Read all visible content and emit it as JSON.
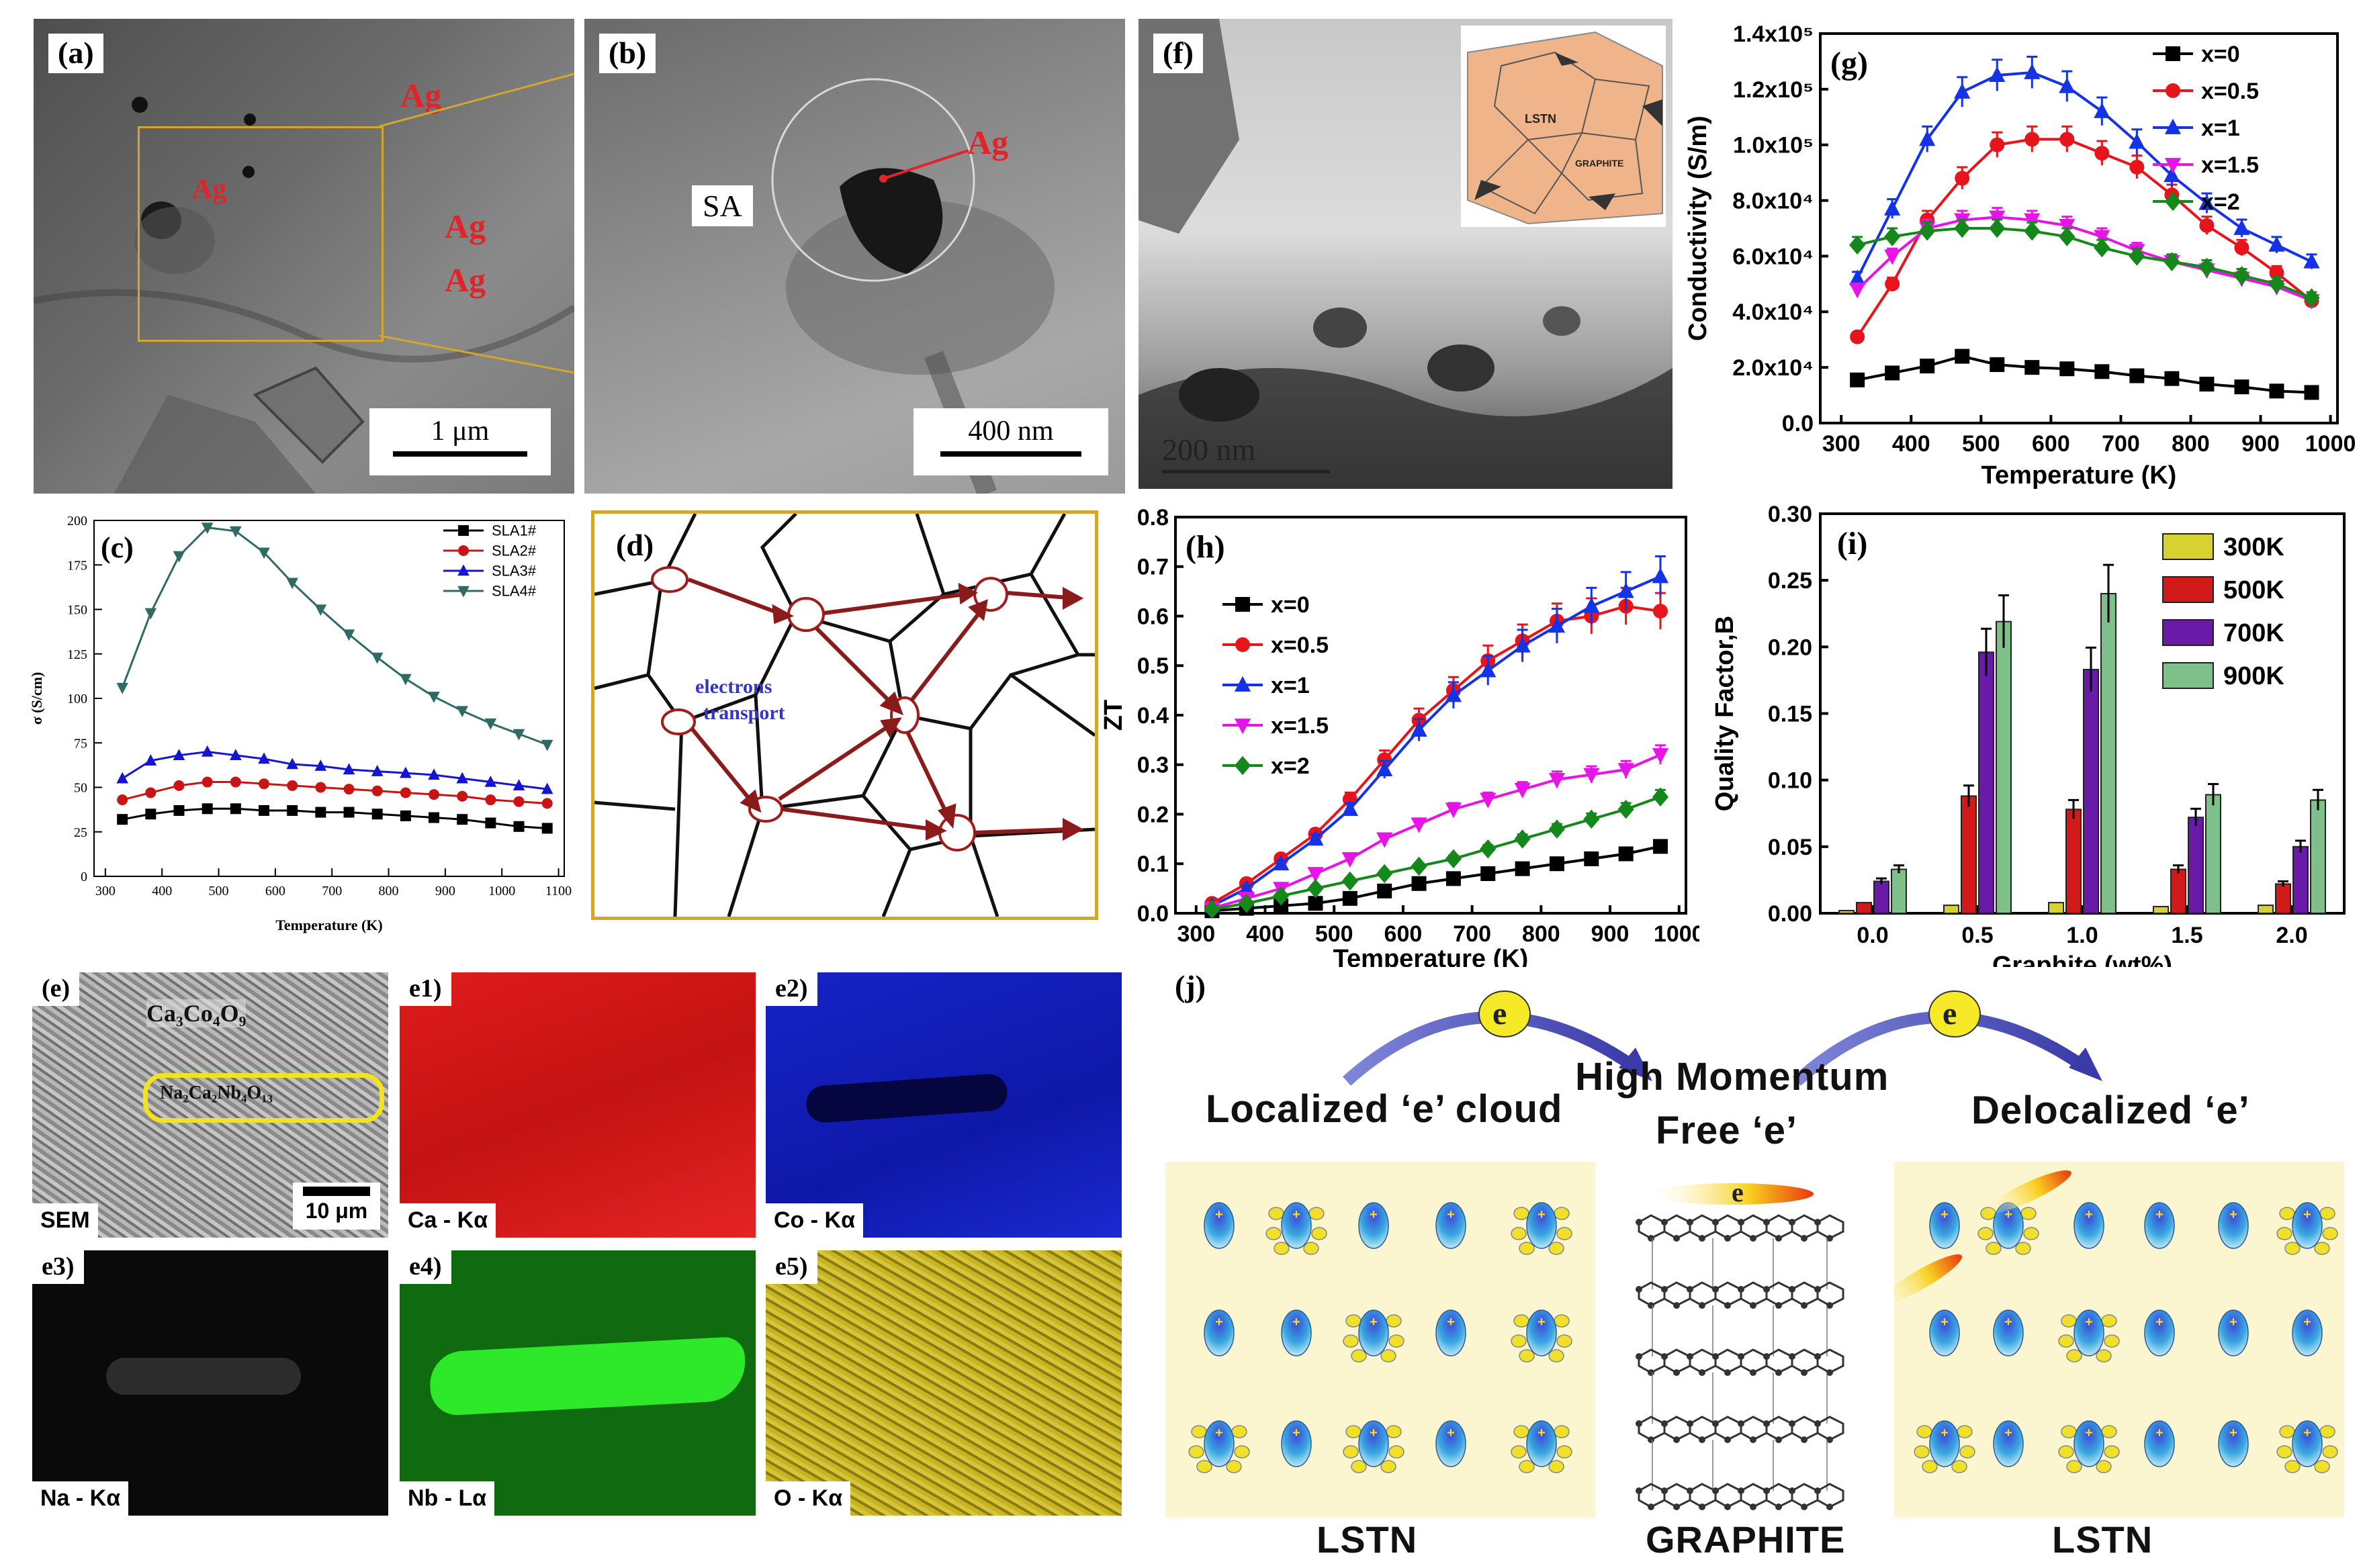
{
  "panel_a": {
    "label": "(a)",
    "ag_labels": [
      "Ag",
      "Ag",
      "Ag",
      "Ag"
    ],
    "scale": "1 μm"
  },
  "panel_b": {
    "label": "(b)",
    "sa": "SA",
    "ag": "Ag",
    "scale": "400 nm"
  },
  "panel_f": {
    "label": "(f)",
    "inset_lstn": "LSTN",
    "inset_graphite": "GRAPHITE",
    "scale": "200 nm"
  },
  "panel_d": {
    "label": "(d)",
    "text1": "electrons",
    "text2": "transport"
  },
  "panel_e": {
    "label": "(e)",
    "formula1": "Ca₃Co₄O₉",
    "formula2": "Na₂Ca₂Nb₄O₁₃",
    "scale": "10 μm",
    "caption": "SEM",
    "maps": [
      {
        "label": "e1)",
        "caption": "Ca - Kα",
        "color": "#d81818"
      },
      {
        "label": "e2)",
        "caption": "Co - Kα",
        "color": "#1420c0"
      },
      {
        "label": "e3)",
        "caption": "Na - Kα",
        "color": "#0a0a0a"
      },
      {
        "label": "e4)",
        "caption": "Nb - Lα",
        "color": "#0f6a10"
      },
      {
        "label": "e5)",
        "caption": "O - Kα",
        "color": "#b8a418"
      }
    ]
  },
  "panel_j": {
    "label": "(j)",
    "e": "e",
    "left_title": "Localized ‘e’ cloud",
    "mid_title1": "High Momentum",
    "mid_title2": "Free ‘e’",
    "right_title": "Delocalized ‘e’",
    "left_bottom": "LSTN",
    "mid_bottom": "GRAPHITE",
    "right_bottom": "LSTN"
  },
  "colors": {
    "panel_border": "#d4a72c",
    "arrow": "#8b1a1a",
    "lattice_bg": "#fbf6d0"
  },
  "chart_data": [
    {
      "id": "g",
      "type": "line",
      "label": "(g)",
      "xlabel": "Temperature (K)",
      "ylabel": "Conductivity (S/m)",
      "xlim": [
        270,
        1010
      ],
      "ylim": [
        0,
        140000
      ],
      "xticks": [
        300,
        400,
        500,
        600,
        700,
        800,
        900,
        1000
      ],
      "yticks": [
        "0.0",
        "2.0x10⁴",
        "4.0x10⁴",
        "6.0x10⁴",
        "8.0x10⁴",
        "1.0x10⁵",
        "1.2x10⁵",
        "1.4x10⁵"
      ],
      "x": [
        323,
        373,
        423,
        473,
        523,
        573,
        623,
        673,
        723,
        773,
        823,
        873,
        923,
        973
      ],
      "series": [
        {
          "name": "x=0",
          "color": "#000000",
          "marker": "square",
          "values": [
            15500,
            18000,
            20500,
            24000,
            21000,
            20000,
            19500,
            18500,
            17000,
            16000,
            14000,
            13000,
            11500,
            11000
          ]
        },
        {
          "name": "x=0.5",
          "color": "#e8141c",
          "marker": "circle",
          "values": [
            31000,
            50000,
            73000,
            88000,
            100000,
            102000,
            102000,
            97000,
            92000,
            82000,
            71000,
            63000,
            54000,
            44000
          ]
        },
        {
          "name": "x=1",
          "color": "#1432e6",
          "marker": "triangle",
          "values": [
            52000,
            77000,
            102000,
            119000,
            125000,
            126000,
            121000,
            112000,
            101000,
            89000,
            79000,
            70000,
            64000,
            58000
          ]
        },
        {
          "name": "x=1.5",
          "color": "#e614e6",
          "marker": "triangle-down",
          "values": [
            48000,
            60000,
            70000,
            73000,
            74000,
            73000,
            71000,
            67000,
            62000,
            58000,
            55000,
            52000,
            49000,
            44000
          ]
        },
        {
          "name": "x=2",
          "color": "#14881a",
          "marker": "diamond",
          "values": [
            64000,
            67000,
            69000,
            70000,
            70000,
            69000,
            67000,
            63000,
            60000,
            58000,
            56000,
            53000,
            50000,
            45000
          ]
        }
      ]
    },
    {
      "id": "c",
      "type": "line",
      "label": "(c)",
      "xlabel": "Temperature (K)",
      "ylabel": "σ (S/cm)",
      "xlim": [
        280,
        1110
      ],
      "ylim": [
        0,
        200
      ],
      "xticks": [
        300,
        400,
        500,
        600,
        700,
        800,
        900,
        1000,
        1100
      ],
      "yticks": [
        0,
        25,
        50,
        75,
        100,
        125,
        150,
        175,
        200
      ],
      "x": [
        330,
        380,
        430,
        480,
        530,
        580,
        630,
        680,
        730,
        780,
        830,
        880,
        930,
        980,
        1030,
        1080
      ],
      "series": [
        {
          "name": "SLA1#",
          "color": "#000000",
          "marker": "square",
          "values": [
            32,
            35,
            37,
            38,
            38,
            37,
            37,
            36,
            36,
            35,
            34,
            33,
            32,
            30,
            28,
            27
          ]
        },
        {
          "name": "SLA2#",
          "color": "#c81414",
          "marker": "circle",
          "values": [
            43,
            47,
            51,
            53,
            53,
            52,
            51,
            50,
            49,
            48,
            47,
            46,
            45,
            43,
            42,
            41
          ]
        },
        {
          "name": "SLA3#",
          "color": "#1414d2",
          "marker": "triangle",
          "values": [
            55,
            65,
            68,
            70,
            68,
            66,
            63,
            62,
            60,
            59,
            58,
            57,
            55,
            53,
            51,
            49
          ]
        },
        {
          "name": "SLA4#",
          "color": "#2f6b63",
          "marker": "triangle-down",
          "values": [
            106,
            148,
            180,
            196,
            194,
            182,
            165,
            150,
            136,
            123,
            111,
            101,
            93,
            86,
            80,
            74
          ]
        }
      ]
    },
    {
      "id": "h",
      "type": "line",
      "label": "(h)",
      "xlabel": "Temperature (K)",
      "ylabel": "ZT",
      "xlim": [
        270,
        1010
      ],
      "ylim": [
        0,
        0.8
      ],
      "xticks": [
        300,
        400,
        500,
        600,
        700,
        800,
        900,
        1000
      ],
      "yticks": [
        "0.0",
        "0.1",
        "0.2",
        "0.3",
        "0.4",
        "0.5",
        "0.6",
        "0.7",
        "0.8"
      ],
      "x": [
        323,
        373,
        423,
        473,
        523,
        573,
        623,
        673,
        723,
        773,
        823,
        873,
        923,
        973
      ],
      "series": [
        {
          "name": "x=0",
          "color": "#000000",
          "marker": "square",
          "values": [
            0.005,
            0.01,
            0.015,
            0.02,
            0.03,
            0.045,
            0.06,
            0.07,
            0.08,
            0.09,
            0.1,
            0.11,
            0.12,
            0.135
          ]
        },
        {
          "name": "x=0.5",
          "color": "#e8141c",
          "marker": "circle",
          "values": [
            0.02,
            0.06,
            0.11,
            0.16,
            0.23,
            0.31,
            0.39,
            0.45,
            0.51,
            0.55,
            0.59,
            0.6,
            0.62,
            0.61
          ]
        },
        {
          "name": "x=1",
          "color": "#1432e6",
          "marker": "triangle",
          "values": [
            0.015,
            0.05,
            0.1,
            0.15,
            0.21,
            0.29,
            0.37,
            0.44,
            0.49,
            0.54,
            0.58,
            0.62,
            0.65,
            0.68
          ]
        },
        {
          "name": "x=1.5",
          "color": "#e614e6",
          "marker": "triangle-down",
          "values": [
            0.01,
            0.03,
            0.05,
            0.08,
            0.11,
            0.15,
            0.18,
            0.21,
            0.23,
            0.25,
            0.27,
            0.28,
            0.29,
            0.32
          ]
        },
        {
          "name": "x=2",
          "color": "#14881a",
          "marker": "diamond",
          "values": [
            0.008,
            0.02,
            0.035,
            0.05,
            0.065,
            0.08,
            0.095,
            0.11,
            0.13,
            0.15,
            0.17,
            0.19,
            0.21,
            0.235
          ]
        }
      ]
    },
    {
      "id": "i",
      "type": "bar",
      "label": "(i)",
      "xlabel": "Graphite (wt%)",
      "ylabel": "Quality Factor,B",
      "ylim": [
        0,
        0.3
      ],
      "categories": [
        "0.0",
        "0.5",
        "1.0",
        "1.5",
        "2.0"
      ],
      "yticks": [
        "0.00",
        "0.05",
        "0.10",
        "0.15",
        "0.20",
        "0.25",
        "0.30"
      ],
      "series": [
        {
          "name": "300K",
          "color": "#d8d230",
          "values": [
            0.002,
            0.006,
            0.008,
            0.005,
            0.006
          ]
        },
        {
          "name": "500K",
          "color": "#d21a1a",
          "values": [
            0.008,
            0.088,
            0.078,
            0.033,
            0.022
          ]
        },
        {
          "name": "700K",
          "color": "#6a1aa8",
          "values": [
            0.024,
            0.196,
            0.183,
            0.072,
            0.05
          ]
        },
        {
          "name": "900K",
          "color": "#7fc08a",
          "values": [
            0.033,
            0.219,
            0.24,
            0.089,
            0.085
          ]
        }
      ]
    }
  ]
}
